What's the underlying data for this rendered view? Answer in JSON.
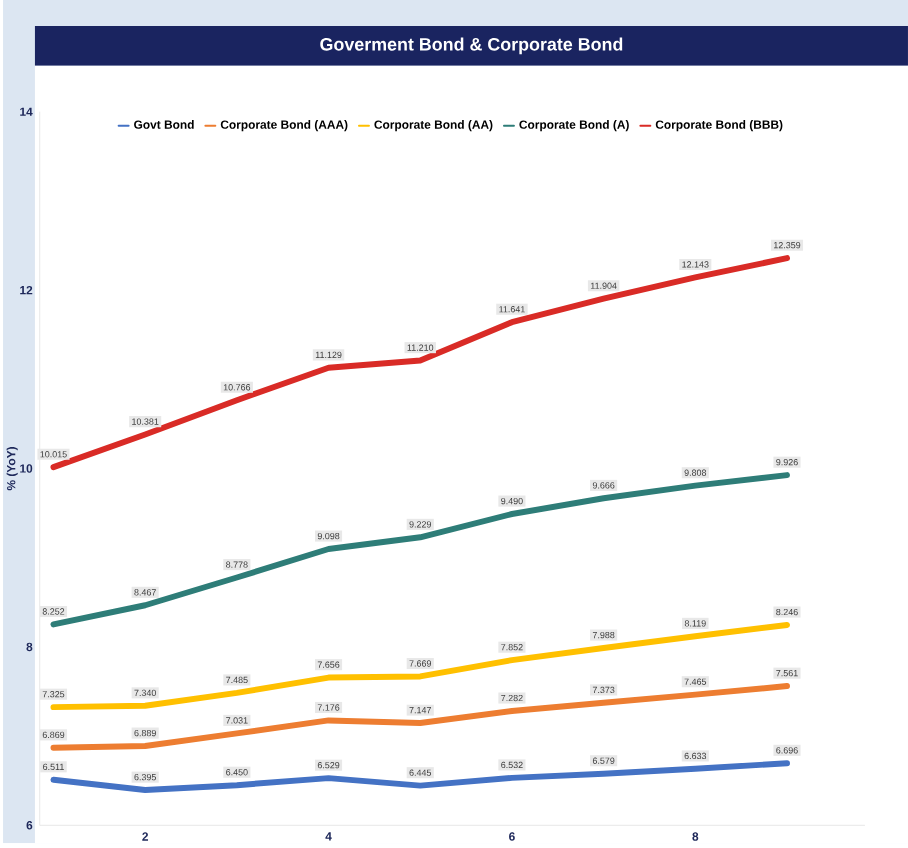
{
  "chart_data": {
    "type": "line",
    "title": "Goverment Bond & Corporate Bond",
    "ylabel": "% (YoY)",
    "x": [
      1,
      2,
      3,
      4,
      5,
      6,
      7,
      8,
      9
    ],
    "series": [
      {
        "name": "Govt Bond",
        "color": "#4472c4",
        "values": [
          6.511,
          6.395,
          6.45,
          6.529,
          6.445,
          6.532,
          6.579,
          6.633,
          6.696
        ],
        "value_labels": [
          "6.511",
          "6.395",
          "6.450",
          "6.529",
          "6.445",
          "6.532",
          "6.579",
          "6.633",
          "6.696"
        ]
      },
      {
        "name": "Corporate Bond (AAA)",
        "color": "#ed7d31",
        "values": [
          6.869,
          6.889,
          7.031,
          7.176,
          7.147,
          7.282,
          7.373,
          7.465,
          7.561
        ],
        "value_labels": [
          "6.869",
          "6.889",
          "7.031",
          "7.176",
          "7.147",
          "7.282",
          "7.373",
          "7.465",
          "7.561"
        ]
      },
      {
        "name": "Corporate Bond (AA)",
        "color": "#ffc000",
        "values": [
          7.325,
          7.34,
          7.485,
          7.656,
          7.669,
          7.852,
          7.988,
          8.119,
          8.246
        ],
        "value_labels": [
          "7.325",
          "7.340",
          "7.485",
          "7.656",
          "7.669",
          "7.852",
          "7.988",
          "8.119",
          "8.246"
        ]
      },
      {
        "name": "Corporate Bond (A)",
        "color": "#2e7d78",
        "values": [
          8.252,
          8.467,
          8.778,
          9.098,
          9.229,
          9.49,
          9.666,
          9.808,
          9.926
        ],
        "value_labels": [
          "8.252",
          "8.467",
          "8.778",
          "9.098",
          "9.229",
          "9.490",
          "9.666",
          "9.808",
          "9.926"
        ]
      },
      {
        "name": "Corporate Bond (BBB)",
        "color": "#d92b26",
        "values": [
          10.015,
          10.381,
          10.766,
          11.129,
          11.21,
          11.641,
          11.904,
          12.143,
          12.359
        ],
        "value_labels": [
          "10.015",
          "10.381",
          "10.766",
          "11.129",
          "11.210",
          "11.641",
          "11.904",
          "12.143",
          "12.359"
        ]
      }
    ],
    "xlim": [
      0.85,
      9.85
    ],
    "ylim": [
      6,
      14
    ],
    "xticks": [
      2,
      4,
      6,
      8
    ],
    "yticks": [
      6,
      8,
      10,
      12,
      14
    ],
    "grid": false,
    "legend": "top",
    "marker": "none",
    "line_style": "solid"
  }
}
